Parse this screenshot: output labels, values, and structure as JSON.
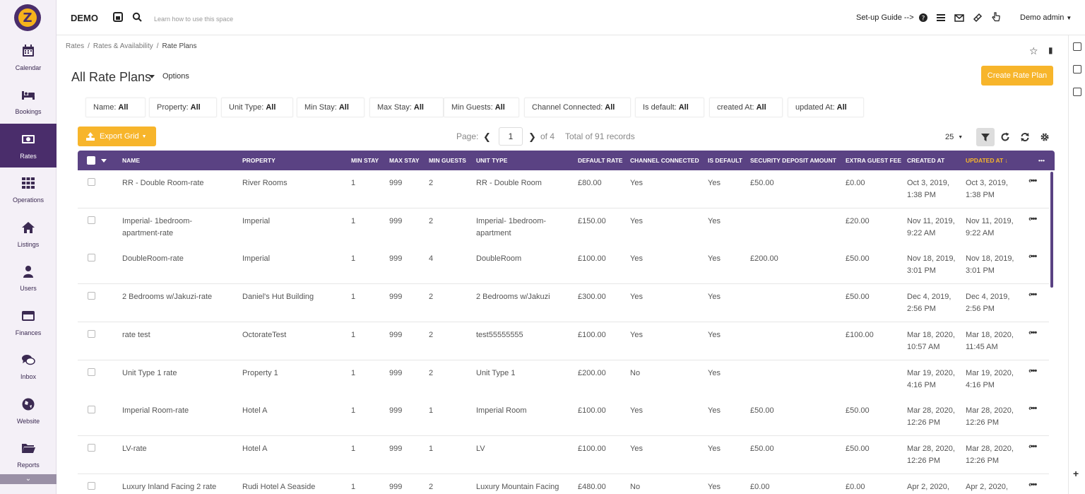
{
  "app": {
    "brand": "DEMO",
    "search_hint": "Learn how to use this space",
    "setup_guide": "Set-up Guide -->",
    "user": "Demo admin"
  },
  "colors": {
    "primary": "#5a4283",
    "sidebar_active": "#4a2d6b",
    "accent": "#f7b52b"
  },
  "sidebar": {
    "items": [
      {
        "label": "Calendar",
        "icon": "calendar-icon"
      },
      {
        "label": "Bookings",
        "icon": "bed-icon"
      },
      {
        "label": "Rates",
        "icon": "money-icon",
        "active": true
      },
      {
        "label": "Operations",
        "icon": "grid-icon"
      },
      {
        "label": "Listings",
        "icon": "home-icon"
      },
      {
        "label": "Users",
        "icon": "user-icon"
      },
      {
        "label": "Finances",
        "icon": "credit-card-icon"
      },
      {
        "label": "Inbox",
        "icon": "chat-icon"
      },
      {
        "label": "Website",
        "icon": "globe-icon"
      },
      {
        "label": "Reports",
        "icon": "folder-icon"
      }
    ]
  },
  "breadcrumb": [
    "Rates",
    "Rates & Availability",
    "Rate Plans"
  ],
  "header": {
    "title": "All Rate Plans",
    "options": "Options",
    "create_button": "Create Rate Plan"
  },
  "filters": [
    {
      "label": "Name:",
      "value": "All"
    },
    {
      "label": "Property:",
      "value": "All"
    },
    {
      "label": "Unit Type:",
      "value": "All"
    },
    {
      "label": "Min Stay:",
      "value": "All"
    },
    {
      "label": "Max Stay:",
      "value": "All"
    },
    {
      "label": "Min Guests:",
      "value": "All"
    },
    {
      "label": "Channel Connected:",
      "value": "All"
    },
    {
      "label": "Is default:",
      "value": "All"
    },
    {
      "label": "created At:",
      "value": "All"
    },
    {
      "label": "updated At:",
      "value": "All"
    }
  ],
  "toolbar": {
    "export": "Export Grid",
    "page_label": "Page:",
    "page": "1",
    "of_pages": "of 4",
    "total": "Total of 91 records",
    "page_size": "25"
  },
  "columns": [
    "NAME",
    "PROPERTY",
    "MIN STAY",
    "MAX STAY",
    "MIN GUESTS",
    "UNIT TYPE",
    "DEFAULT RATE",
    "CHANNEL CONNECTED",
    "IS DEFAULT",
    "SECURITY DEPOSIT AMOUNT",
    "EXTRA GUEST FEE",
    "CREATED AT",
    "UPDATED AT ↓",
    "•••"
  ],
  "rows": [
    {
      "name": [
        "RR - Double Room-rate"
      ],
      "property": "River Rooms",
      "min_stay": "1",
      "max_stay": "999",
      "min_guests": "2",
      "unit_type": [
        "RR - Double Room"
      ],
      "default_rate": "£80.00",
      "channel": "Yes",
      "is_default": "Yes",
      "deposit": "£50.00",
      "extra_fee": "£0.00",
      "created": [
        "Oct 3, 2019,",
        "1:38 PM"
      ],
      "updated": [
        "Oct 3, 2019,",
        "1:38 PM"
      ]
    },
    {
      "name": [
        "Imperial- 1bedroom-",
        "apartment-rate"
      ],
      "property": "Imperial",
      "min_stay": "1",
      "max_stay": "999",
      "min_guests": "2",
      "unit_type": [
        "Imperial- 1bedroom-",
        "apartment"
      ],
      "default_rate": "£150.00",
      "channel": "Yes",
      "is_default": "Yes",
      "deposit": "",
      "extra_fee": "£20.00",
      "created": [
        "Nov 11, 2019,",
        "9:22 AM"
      ],
      "updated": [
        "Nov 11, 2019,",
        "9:22 AM"
      ]
    },
    {
      "name": [
        "DoubleRoom-rate"
      ],
      "property": "Imperial",
      "min_stay": "1",
      "max_stay": "999",
      "min_guests": "4",
      "unit_type": [
        "DoubleRoom"
      ],
      "default_rate": "£100.00",
      "channel": "Yes",
      "is_default": "Yes",
      "deposit": "£200.00",
      "extra_fee": "£50.00",
      "created": [
        "Nov 18, 2019,",
        "3:01 PM"
      ],
      "updated": [
        "Nov 18, 2019,",
        "3:01 PM"
      ]
    },
    {
      "name": [
        "2 Bedrooms w/Jakuzi-rate"
      ],
      "property": "Daniel's Hut Building",
      "min_stay": "1",
      "max_stay": "999",
      "min_guests": "2",
      "unit_type": [
        "2 Bedrooms w/Jakuzi"
      ],
      "default_rate": "£300.00",
      "channel": "Yes",
      "is_default": "Yes",
      "deposit": "",
      "extra_fee": "£50.00",
      "created": [
        "Dec 4, 2019,",
        "2:56 PM"
      ],
      "updated": [
        "Dec 4, 2019,",
        "2:56 PM"
      ]
    },
    {
      "name": [
        "rate test"
      ],
      "property": "OctorateTest",
      "min_stay": "1",
      "max_stay": "999",
      "min_guests": "2",
      "unit_type": [
        "test55555555"
      ],
      "default_rate": "£100.00",
      "channel": "Yes",
      "is_default": "Yes",
      "deposit": "",
      "extra_fee": "£100.00",
      "created": [
        "Mar 18, 2020,",
        "10:57 AM"
      ],
      "updated": [
        "Mar 18, 2020,",
        "11:45 AM"
      ]
    },
    {
      "name": [
        "Unit Type 1 rate"
      ],
      "property": "Property 1",
      "min_stay": "1",
      "max_stay": "999",
      "min_guests": "2",
      "unit_type": [
        "Unit Type 1"
      ],
      "default_rate": "£200.00",
      "channel": "No",
      "is_default": "Yes",
      "deposit": "",
      "extra_fee": "",
      "created": [
        "Mar 19, 2020,",
        "4:16 PM"
      ],
      "updated": [
        "Mar 19, 2020,",
        "4:16 PM"
      ]
    },
    {
      "name": [
        "Imperial Room-rate"
      ],
      "property": "Hotel A",
      "min_stay": "1",
      "max_stay": "999",
      "min_guests": "1",
      "unit_type": [
        "Imperial Room"
      ],
      "default_rate": "£100.00",
      "channel": "Yes",
      "is_default": "Yes",
      "deposit": "£50.00",
      "extra_fee": "£50.00",
      "created": [
        "Mar 28, 2020,",
        "12:26 PM"
      ],
      "updated": [
        "Mar 28, 2020,",
        "12:26 PM"
      ]
    },
    {
      "name": [
        "LV-rate"
      ],
      "property": "Hotel A",
      "min_stay": "1",
      "max_stay": "999",
      "min_guests": "1",
      "unit_type": [
        "LV"
      ],
      "default_rate": "£100.00",
      "channel": "Yes",
      "is_default": "Yes",
      "deposit": "£50.00",
      "extra_fee": "£50.00",
      "created": [
        "Mar 28, 2020,",
        "12:26 PM"
      ],
      "updated": [
        "Mar 28, 2020,",
        "12:26 PM"
      ]
    },
    {
      "name": [
        "Luxury Inland Facing 2 rate"
      ],
      "property": "Rudi Hotel A Seaside",
      "min_stay": "1",
      "max_stay": "999",
      "min_guests": "2",
      "unit_type": [
        "Luxury Mountain Facing"
      ],
      "default_rate": "£480.00",
      "channel": "No",
      "is_default": "Yes",
      "deposit": "£0.00",
      "extra_fee": "£0.00",
      "created": [
        "Apr 2, 2020,",
        ""
      ],
      "updated": [
        "Apr 2, 2020,",
        ""
      ]
    }
  ]
}
